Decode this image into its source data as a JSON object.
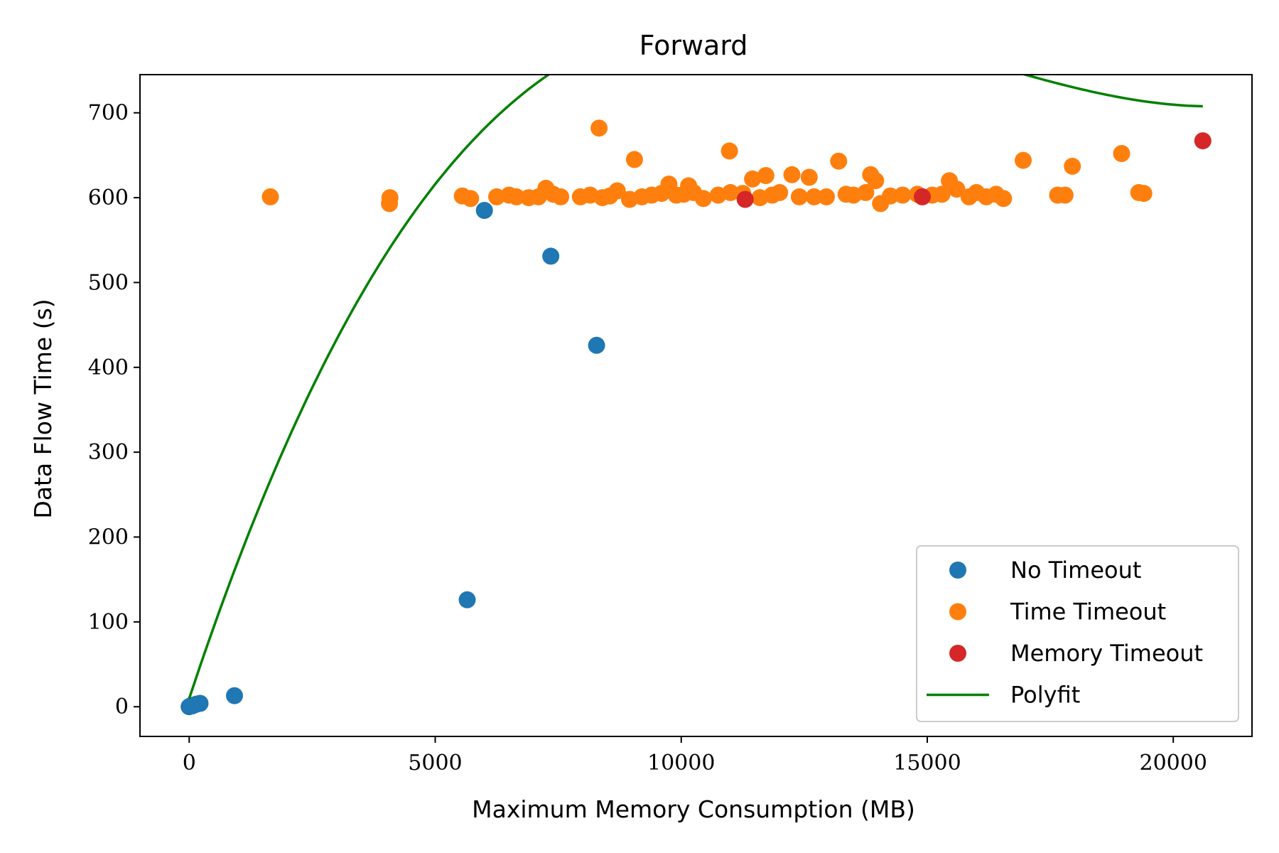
{
  "chart_data": {
    "type": "scatter",
    "title": "Forward",
    "xlabel": "Maximum Memory Consumption (MB)",
    "ylabel": "Data Flow Time (s)",
    "xlim": [
      -1000,
      21600
    ],
    "ylim": [
      -35,
      745
    ],
    "xticks": [
      0,
      5000,
      10000,
      15000,
      20000
    ],
    "yticks": [
      0,
      100,
      200,
      300,
      400,
      500,
      600,
      700
    ],
    "grid": false,
    "legend_position": "bottom-right",
    "colors": {
      "no_timeout": "#1f77b4",
      "time_timeout": "#ff7f0e",
      "memory_timeout": "#d62728",
      "polyfit": "#008000"
    },
    "series": [
      {
        "name": "No Timeout",
        "kind": "scatter",
        "color": "#1f77b4",
        "points": [
          [
            0,
            0
          ],
          [
            30,
            1
          ],
          [
            60,
            1
          ],
          [
            100,
            2
          ],
          [
            150,
            3
          ],
          [
            220,
            4
          ],
          [
            920,
            13
          ],
          [
            5650,
            126
          ],
          [
            6000,
            585
          ],
          [
            7350,
            531
          ],
          [
            8280,
            426
          ]
        ]
      },
      {
        "name": "Time Timeout",
        "kind": "scatter",
        "color": "#ff7f0e",
        "points": [
          [
            1650,
            601
          ],
          [
            4080,
            600
          ],
          [
            4070,
            593
          ],
          [
            5550,
            602
          ],
          [
            5720,
            599
          ],
          [
            6250,
            601
          ],
          [
            6500,
            603
          ],
          [
            6650,
            601
          ],
          [
            6900,
            600
          ],
          [
            7100,
            601
          ],
          [
            7250,
            611
          ],
          [
            7400,
            604
          ],
          [
            7550,
            601
          ],
          [
            7950,
            601
          ],
          [
            8150,
            603
          ],
          [
            8330,
            682
          ],
          [
            8400,
            600
          ],
          [
            8550,
            602
          ],
          [
            8700,
            608
          ],
          [
            8950,
            598
          ],
          [
            9050,
            645
          ],
          [
            9200,
            601
          ],
          [
            9400,
            603
          ],
          [
            9600,
            605
          ],
          [
            9750,
            616
          ],
          [
            9900,
            603
          ],
          [
            10050,
            604
          ],
          [
            10150,
            614
          ],
          [
            10250,
            606
          ],
          [
            10450,
            599
          ],
          [
            10750,
            603
          ],
          [
            10980,
            655
          ],
          [
            11000,
            606
          ],
          [
            11250,
            605
          ],
          [
            11450,
            622
          ],
          [
            11600,
            600
          ],
          [
            11720,
            626
          ],
          [
            11850,
            603
          ],
          [
            12000,
            606
          ],
          [
            12250,
            627
          ],
          [
            12400,
            601
          ],
          [
            12600,
            624
          ],
          [
            12700,
            601
          ],
          [
            12950,
            601
          ],
          [
            13200,
            643
          ],
          [
            13350,
            604
          ],
          [
            13500,
            603
          ],
          [
            13750,
            606
          ],
          [
            13850,
            627
          ],
          [
            13950,
            620
          ],
          [
            14050,
            593
          ],
          [
            14250,
            602
          ],
          [
            14500,
            603
          ],
          [
            14800,
            604
          ],
          [
            15100,
            603
          ],
          [
            15300,
            604
          ],
          [
            15450,
            620
          ],
          [
            15600,
            610
          ],
          [
            15850,
            601
          ],
          [
            16000,
            606
          ],
          [
            16200,
            601
          ],
          [
            16400,
            604
          ],
          [
            16550,
            599
          ],
          [
            16950,
            644
          ],
          [
            17650,
            603
          ],
          [
            17800,
            603
          ],
          [
            17950,
            637
          ],
          [
            18950,
            652
          ],
          [
            19300,
            606
          ],
          [
            19400,
            605
          ]
        ]
      },
      {
        "name": "Memory Timeout",
        "kind": "scatter",
        "color": "#d62728",
        "points": [
          [
            11300,
            598
          ],
          [
            14900,
            601
          ],
          [
            20600,
            667
          ]
        ]
      },
      {
        "name": "Polyfit",
        "kind": "line",
        "color": "#008000",
        "x_range": [
          0,
          20600
        ],
        "cubic_coefficients": [
          9.6,
          0.175,
          -1.2e-05,
          2.5e-10
        ]
      }
    ]
  }
}
